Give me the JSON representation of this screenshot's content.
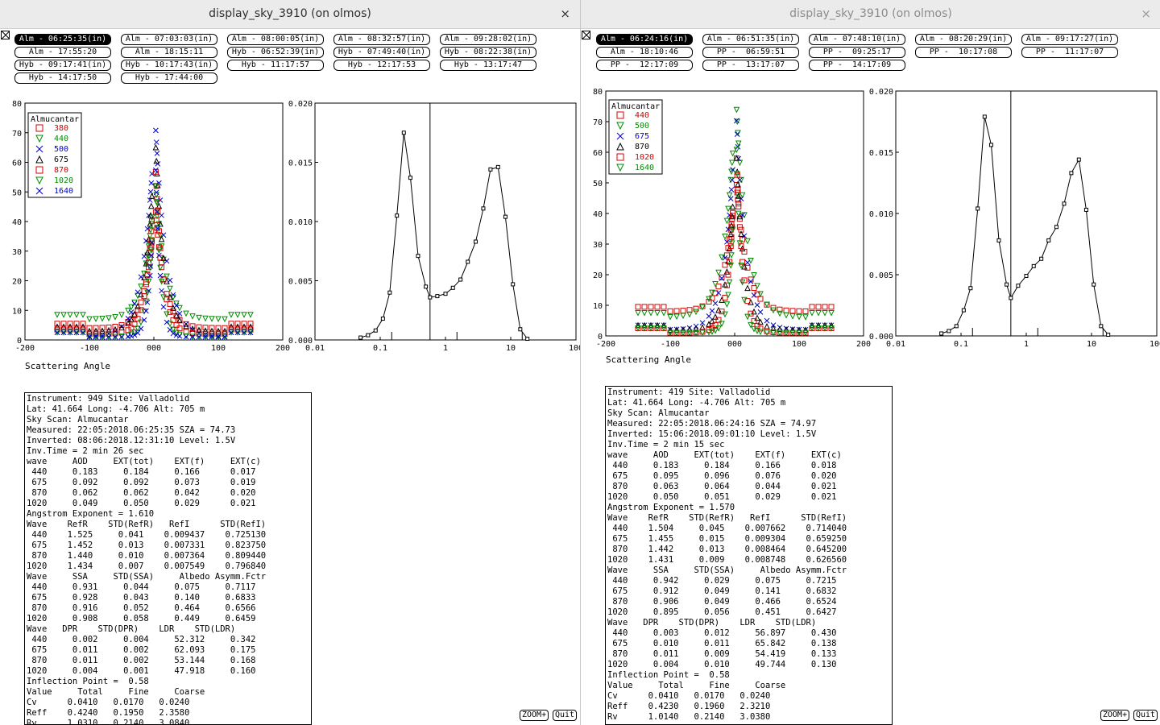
{
  "windows": [
    {
      "title": "display_sky_3910 (on olmos)",
      "close_icon": "×",
      "scans": [
        {
          "label": "Alm - 06:25:35(in)",
          "selected": true
        },
        {
          "label": "Alm - 07:03:03(in)"
        },
        {
          "label": "Alm - 08:00:05(in)"
        },
        {
          "label": "Alm - 08:32:57(in)"
        },
        {
          "label": "Alm - 09:28:02(in)"
        },
        {
          "label": "Alm - 17:55:20"
        },
        {
          "label": "Alm - 18:15:11"
        },
        {
          "label": "Hyb - 06:52:39(in)"
        },
        {
          "label": "Hyb - 07:49:40(in)"
        },
        {
          "label": "Hyb - 08:22:38(in)"
        },
        {
          "label": "Hyb - 09:17:41(in)"
        },
        {
          "label": "Hyb - 10:17:43(in)"
        },
        {
          "label": "Hyb - 11:17:57"
        },
        {
          "label": "Hyb - 12:17:53"
        },
        {
          "label": "Hyb - 13:17:47"
        },
        {
          "label": "Hyb - 14:17:50"
        },
        {
          "label": "Hyb - 17:44:00"
        }
      ],
      "chart_data": [
        {
          "type": "scatter",
          "legend_title": "Almucantar",
          "legend_placement": "top-left",
          "xlabel": "Scattering Angle",
          "xlim": [
            -200,
            200
          ],
          "ylim": [
            0,
            80
          ],
          "xticks": [
            "-200",
            "-100",
            "000",
            "100",
            "200"
          ],
          "yticks": [
            "0",
            "10",
            "20",
            "30",
            "40",
            "50",
            "60",
            "70",
            "80"
          ],
          "series": [
            {
              "name": "380",
              "color": "#d40000",
              "marker": "square",
              "peak": 46,
              "width": 14,
              "base": 4
            },
            {
              "name": "440",
              "color": "#008c00",
              "marker": "tri-down",
              "peak": 55,
              "width": 15,
              "base": 7
            },
            {
              "name": "500",
              "color": "#0000cc",
              "marker": "cross",
              "peak": 75,
              "width": 17,
              "base": 1
            },
            {
              "name": "675",
              "color": "#000000",
              "marker": "tri-up",
              "peak": 70,
              "width": 13,
              "base": 3
            },
            {
              "name": "870",
              "color": "#d40000",
              "marker": "square",
              "peak": 62,
              "width": 11,
              "base": 2
            },
            {
              "name": "1020",
              "color": "#008c00",
              "marker": "tri-down",
              "peak": 58,
              "width": 9,
              "base": 1
            },
            {
              "name": "1640",
              "color": "#0000cc",
              "marker": "cross",
              "peak": 66,
              "width": 7,
              "base": 1
            }
          ]
        },
        {
          "type": "line",
          "xscale": "log",
          "xlim": [
            0.01,
            100
          ],
          "ylim": [
            0,
            0.02
          ],
          "xticks": [
            "0.01",
            "0.1",
            "1",
            "10",
            "100"
          ],
          "yticks": [
            "0.000",
            "0.005",
            "0.010",
            "0.015",
            "0.020"
          ],
          "inflection_x": 0.58,
          "x": [
            0.05,
            0.065,
            0.085,
            0.11,
            0.14,
            0.18,
            0.23,
            0.29,
            0.38,
            0.5,
            0.58,
            0.75,
            1.0,
            1.3,
            1.7,
            2.2,
            2.9,
            3.8,
            4.9,
            6.4,
            8.3,
            10.8,
            14,
            18
          ],
          "y": [
            0.0002,
            0.0004,
            0.0008,
            0.0018,
            0.004,
            0.0105,
            0.0175,
            0.0137,
            0.0071,
            0.0045,
            0.0036,
            0.0037,
            0.0039,
            0.0044,
            0.0051,
            0.0066,
            0.0083,
            0.0111,
            0.0144,
            0.0146,
            0.0104,
            0.0047,
            0.0009,
            0.0001
          ]
        }
      ],
      "info": {
        "lines": [
          "Instrument: 949 Site: Valladolid",
          "Lat: 41.664 Long: -4.706 Alt: 705 m",
          "Sky Scan: Almucantar",
          "Measured: 22:05:2018.06:25:35 SZA = 74.73",
          "Inverted: 08:06:2018.12:31:10 Level: 1.5V",
          "Inv.Time = 2 min 26 sec",
          "wave     AOD     EXT(tot)    EXT(f)     EXT(c)",
          " 440     0.183     0.184     0.166      0.017",
          " 675     0.092     0.092     0.073      0.019",
          " 870     0.062     0.062     0.042      0.020",
          "1020     0.049     0.050     0.029      0.021",
          "Angstrom Exponent = 1.610",
          "Wave    RefR    STD(RefR)   RefI      STD(RefI)",
          " 440    1.525     0.041    0.009437    0.725130",
          " 675    1.452     0.013    0.007331    0.823750",
          " 870    1.440     0.010    0.007364    0.809440",
          "1020    1.434     0.007    0.007549    0.796840",
          "Wave     SSA     STD(SSA)     Albedo Asymm.Fctr",
          " 440     0.931     0.044     0.075     0.7117",
          " 675     0.928     0.043     0.140     0.6833",
          " 870     0.916     0.052     0.464     0.6566",
          "1020     0.908     0.058     0.449     0.6459",
          "Wave   DPR    STD(DPR)    LDR    STD(LDR)",
          " 440     0.002     0.004     52.312     0.342",
          " 675     0.011     0.002     62.093     0.175",
          " 870     0.011     0.002     53.144     0.168",
          "1020     0.004     0.001     47.918     0.160",
          "Inflection Point =  0.58",
          "Value     Total     Fine     Coarse",
          "Cv      0.0410   0.0170   0.0240",
          "Reff    0.4240   0.1950   2.3580",
          "Rv      1.0310   0.2140   3.0840"
        ]
      },
      "zoom_label": "ZOOM+",
      "quit_label": "Quit"
    },
    {
      "title": "display_sky_3910 (on olmos)",
      "close_icon": "×",
      "scans": [
        {
          "label": "Alm - 06:24:16(in)",
          "selected": true
        },
        {
          "label": "Alm - 06:51:35(in)"
        },
        {
          "label": "Alm - 07:48:10(in)"
        },
        {
          "label": "Alm - 08:20:29(in)"
        },
        {
          "label": "Alm - 09:17:27(in)"
        },
        {
          "label": "Alm - 18:10:46"
        },
        {
          "label": "PP -  06:59:51"
        },
        {
          "label": "PP -  09:25:17"
        },
        {
          "label": "PP -  10:17:08"
        },
        {
          "label": "PP -  11:17:07"
        },
        {
          "label": "PP -  12:17:09"
        },
        {
          "label": "PP -  13:17:07"
        },
        {
          "label": "PP -  14:17:09"
        }
      ],
      "chart_data": [
        {
          "type": "scatter",
          "legend_title": "Almucantar",
          "legend_placement": "top-left",
          "xlabel": "Scattering Angle",
          "xlim": [
            -200,
            200
          ],
          "ylim": [
            0,
            80
          ],
          "xticks": [
            "-200",
            "-100",
            "000",
            "100",
            "200"
          ],
          "yticks": [
            "0",
            "10",
            "20",
            "30",
            "40",
            "50",
            "60",
            "70",
            "80"
          ],
          "series": [
            {
              "name": "440",
              "color": "#d40000",
              "marker": "square",
              "peak": 52,
              "width": 16,
              "base": 8
            },
            {
              "name": "500",
              "color": "#008c00",
              "marker": "tri-down",
              "peak": 78,
              "width": 17,
              "base": 6
            },
            {
              "name": "675",
              "color": "#0000cc",
              "marker": "cross",
              "peak": 75,
              "width": 15,
              "base": 2
            },
            {
              "name": "870",
              "color": "#000000",
              "marker": "tri-up",
              "peak": 63,
              "width": 12,
              "base": 2
            },
            {
              "name": "1020",
              "color": "#d40000",
              "marker": "square",
              "peak": 64,
              "width": 10,
              "base": 1
            },
            {
              "name": "1640",
              "color": "#008c00",
              "marker": "tri-down",
              "peak": 70,
              "width": 7,
              "base": 1
            }
          ]
        },
        {
          "type": "line",
          "xscale": "log",
          "xlim": [
            0.01,
            100
          ],
          "ylim": [
            0,
            0.02
          ],
          "xticks": [
            "0.01",
            "0.1",
            "1",
            "10",
            "100"
          ],
          "yticks": [
            "0.000",
            "0.005",
            "0.010",
            "0.015",
            "0.020"
          ],
          "inflection_x": 0.58,
          "x": [
            0.05,
            0.065,
            0.085,
            0.11,
            0.14,
            0.18,
            0.23,
            0.29,
            0.38,
            0.5,
            0.58,
            0.75,
            1.0,
            1.3,
            1.7,
            2.2,
            2.9,
            3.8,
            4.9,
            6.4,
            8.3,
            10.8,
            14,
            18
          ],
          "y": [
            0.0002,
            0.0004,
            0.0008,
            0.0021,
            0.0039,
            0.0104,
            0.0179,
            0.0156,
            0.0078,
            0.0042,
            0.0031,
            0.0041,
            0.0049,
            0.0057,
            0.0063,
            0.0078,
            0.0089,
            0.0108,
            0.0133,
            0.0144,
            0.0103,
            0.0042,
            0.0008,
            0.0001
          ]
        }
      ],
      "info": {
        "lines": [
          "Instrument: 419 Site: Valladolid",
          "Lat: 41.664 Long: -4.706 Alt: 705 m",
          "Sky Scan: Almucantar",
          "Measured: 22:05:2018.06:24:16 SZA = 74.97",
          "Inverted: 15:06:2018.09:01:10 Level: 1.5V",
          "Inv.Time = 2 min 15 sec",
          "wave     AOD     EXT(tot)    EXT(f)     EXT(c)",
          " 440     0.183     0.184     0.166      0.018",
          " 675     0.095     0.096     0.076      0.020",
          " 870     0.063     0.064     0.044      0.021",
          "1020     0.050     0.051     0.029      0.021",
          "Angstrom Exponent = 1.570",
          "Wave    RefR    STD(RefR)   RefI      STD(RefI)",
          " 440    1.504     0.045    0.007662    0.714040",
          " 675    1.455     0.015    0.009304    0.659250",
          " 870    1.442     0.013    0.008464    0.645200",
          "1020    1.431     0.009    0.008748    0.626560",
          "Wave     SSA     STD(SSA)     Albedo Asymm.Fctr",
          " 440     0.942     0.029     0.075     0.7215",
          " 675     0.912     0.049     0.141     0.6832",
          " 870     0.906     0.049     0.466     0.6524",
          "1020     0.895     0.056     0.451     0.6427",
          "Wave   DPR    STD(DPR)    LDR    STD(LDR)",
          " 440     0.003     0.012     56.897     0.430",
          " 675     0.010     0.011     65.842     0.138",
          " 870     0.011     0.009     54.419     0.133",
          "1020     0.004     0.010     49.744     0.130",
          "Inflection Point =  0.58",
          "Value     Total     Fine     Coarse",
          "Cv      0.0410   0.0170   0.0240",
          "Reff    0.4230   0.1960   2.3210",
          "Rv      1.0140   0.2140   3.0380"
        ]
      },
      "zoom_label": "ZOOM+",
      "quit_label": "Quit"
    }
  ]
}
